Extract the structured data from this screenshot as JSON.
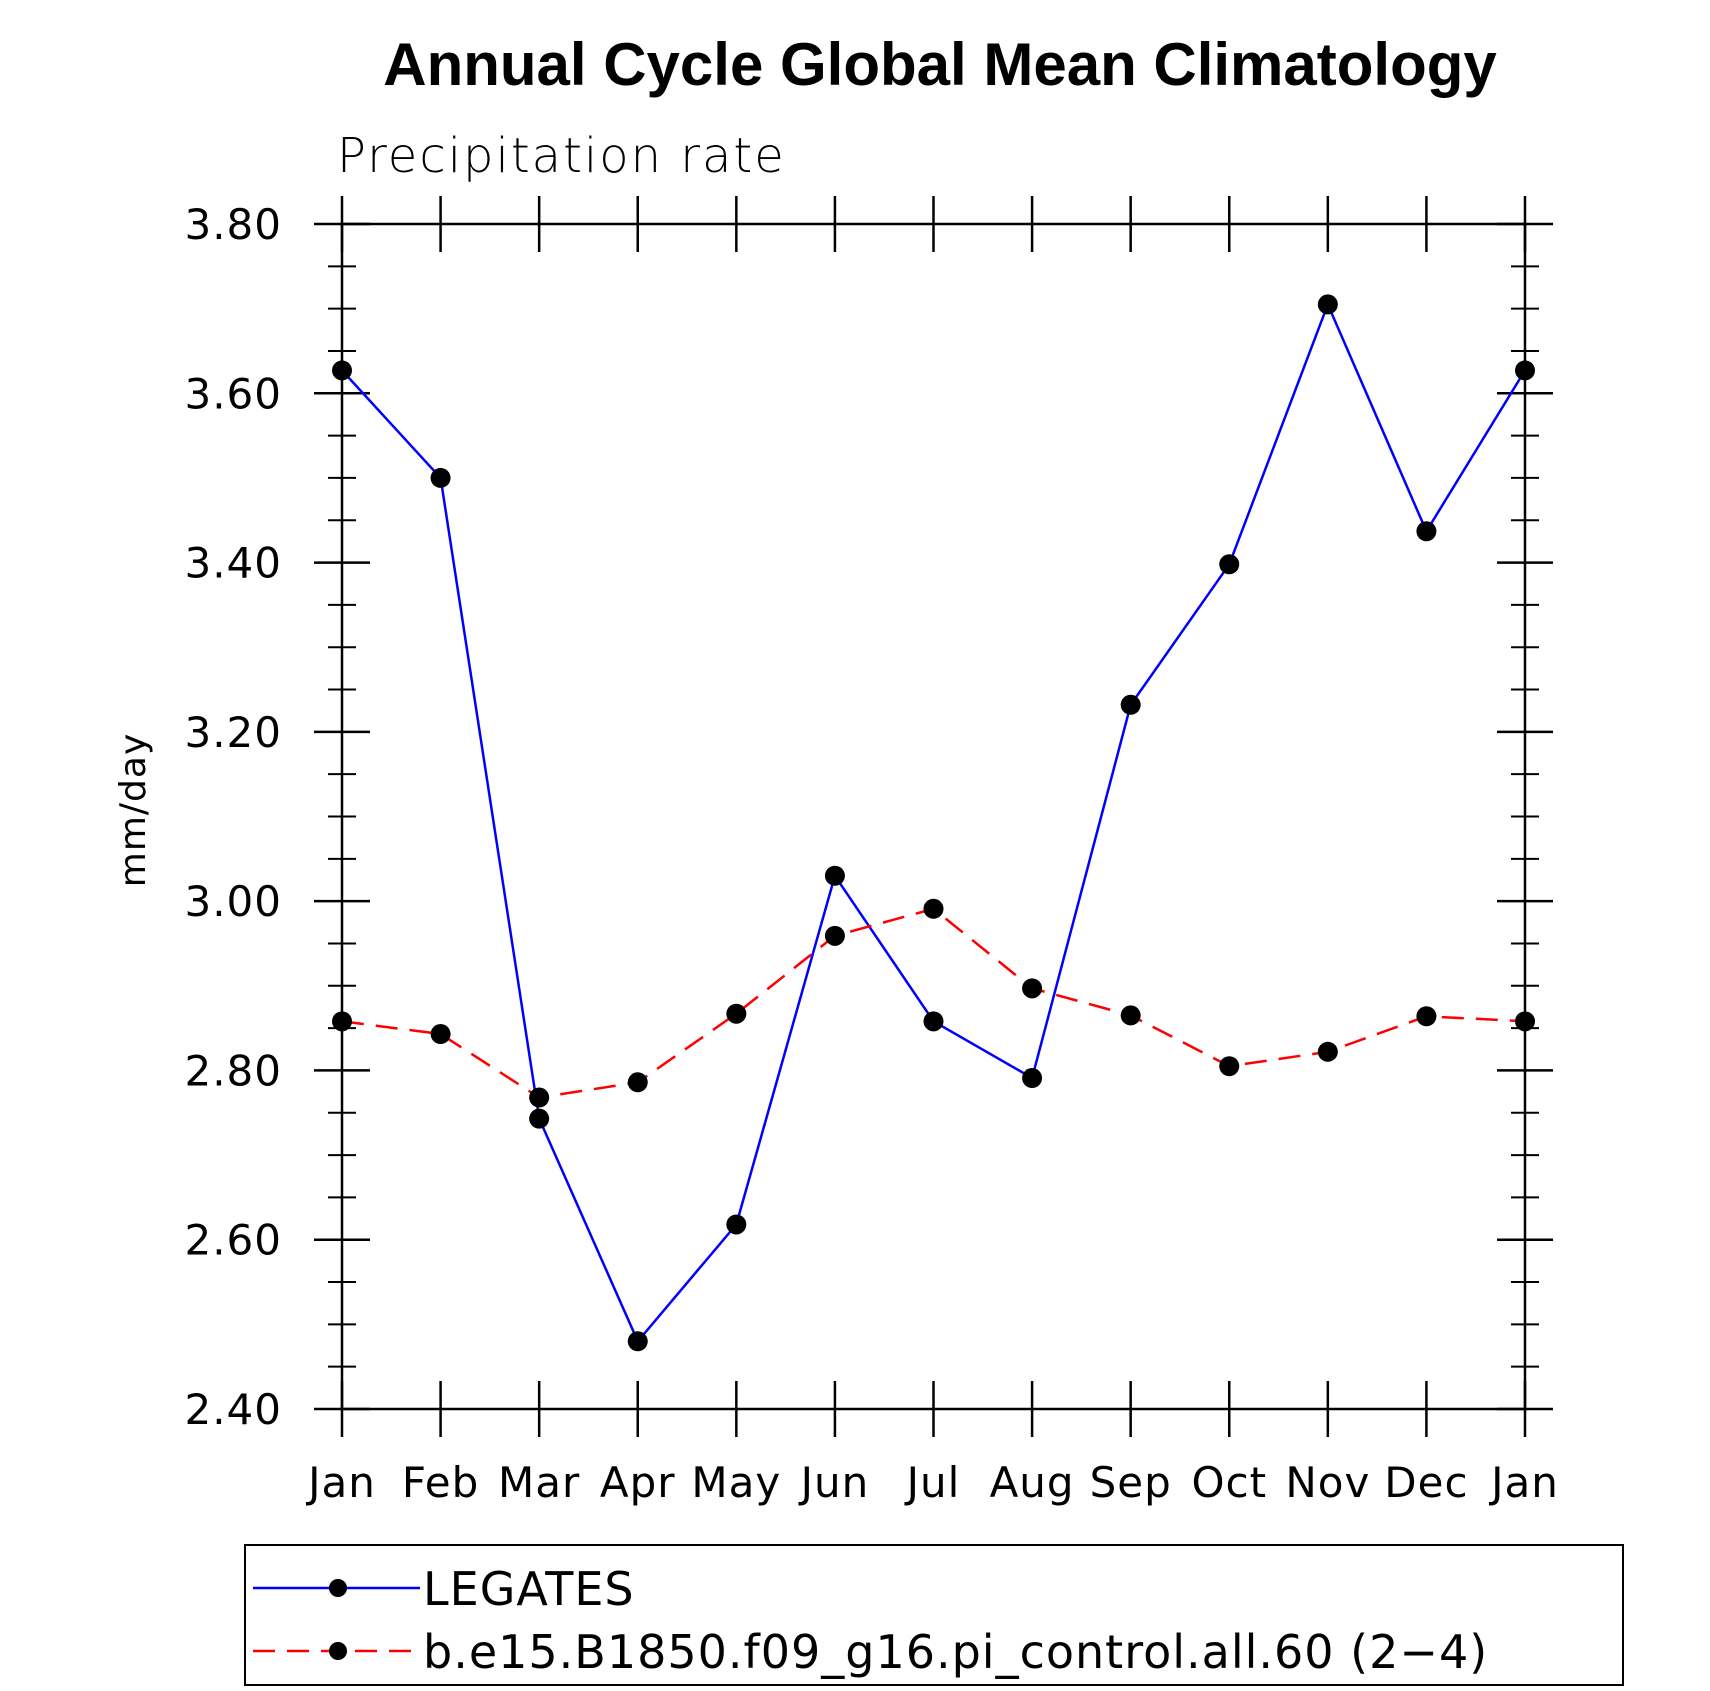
{
  "chart_data": {
    "type": "line",
    "title": "Annual Cycle Global Mean Climatology",
    "subtitle": "Precipitation rate",
    "xlabel": "",
    "ylabel": "mm/day",
    "categories": [
      "Jan",
      "Feb",
      "Mar",
      "Apr",
      "May",
      "Jun",
      "Jul",
      "Aug",
      "Sep",
      "Oct",
      "Nov",
      "Dec",
      "Jan"
    ],
    "ylim": [
      2.4,
      3.8
    ],
    "yticks": [
      "2.40",
      "2.60",
      "2.80",
      "3.00",
      "3.20",
      "3.40",
      "3.60",
      "3.80"
    ],
    "ytick_values": [
      2.4,
      2.6,
      2.8,
      3.0,
      3.2,
      3.4,
      3.6,
      3.8
    ],
    "legend_position": "bottom",
    "series": [
      {
        "name": "LEGATES",
        "color": "#0000ff",
        "dash": "solid",
        "marker": "circle",
        "values": [
          3.627,
          3.5,
          2.743,
          2.48,
          2.618,
          3.03,
          2.858,
          2.791,
          3.232,
          3.398,
          3.705,
          3.437,
          3.627
        ]
      },
      {
        "name": "b.e15.B1850.f09_g16.pi_control.all.60 (2−4)",
        "color": "#ff0000",
        "dash": "dashed",
        "marker": "circle",
        "values": [
          2.858,
          2.843,
          2.768,
          2.786,
          2.867,
          2.959,
          2.991,
          2.897,
          2.865,
          2.805,
          2.822,
          2.864,
          2.858
        ]
      }
    ]
  }
}
